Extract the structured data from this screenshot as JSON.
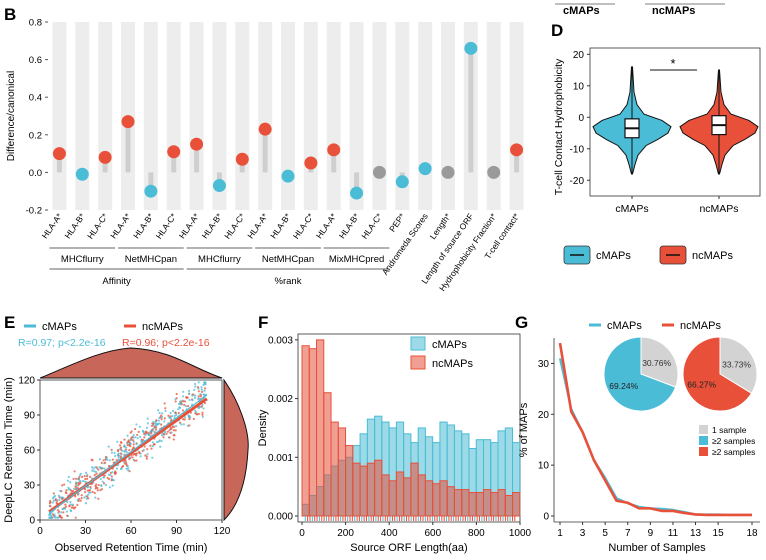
{
  "colors": {
    "cmaps": "#4bbcd6",
    "ncmaps": "#e8503a",
    "neutral": "#9a9a9a",
    "stick": "#cfcfcf",
    "band": "#ededed",
    "pie_grey": "#d3d3d3"
  },
  "top_legend": {
    "left": "cMAPs",
    "right": "ncMAPs"
  },
  "panels": {
    "B": "B",
    "D": "D",
    "E": "E",
    "F": "F",
    "G": "G"
  },
  "chart_data": [
    {
      "panel": "B",
      "type": "scatter",
      "ylabel": "Difference/canonical",
      "ylim": [
        -0.2,
        0.8
      ],
      "yticks": [
        "-0.2",
        "0.0",
        "0.2",
        "0.4",
        "0.6",
        "0.8"
      ],
      "categories": [
        "HLA-A*",
        "HLA-B*",
        "HLA-C*",
        "HLA-A*",
        "HLA-B*",
        "HLA-C*",
        "HLA-A*",
        "HLA-B*",
        "HLA-C*",
        "HLA-A*",
        "HLA-B*",
        "HLA-C*",
        "HLA-A*",
        "HLA-B*",
        "HLA-C*",
        "PEP*",
        "Andromeda Scores",
        "Length*",
        "Length of source ORF",
        "Hydrophobicity Fraction*",
        "T-cell contact*"
      ],
      "values": [
        0.1,
        -0.01,
        0.08,
        0.27,
        -0.1,
        0.11,
        0.15,
        -0.07,
        0.07,
        0.23,
        -0.02,
        0.05,
        0.12,
        -0.11,
        0.0,
        -0.05,
        0.02,
        0.0,
        0.66,
        0.0,
        0.12
      ],
      "point_colors": [
        "ncmaps",
        "cmaps",
        "ncmaps",
        "ncmaps",
        "cmaps",
        "ncmaps",
        "ncmaps",
        "cmaps",
        "ncmaps",
        "ncmaps",
        "cmaps",
        "ncmaps",
        "ncmaps",
        "cmaps",
        "neutral",
        "cmaps",
        "cmaps",
        "neutral",
        "cmaps",
        "neutral",
        "ncmaps"
      ],
      "tools": [
        "MHCflurry",
        "NetMHCpan",
        "MHCflurry",
        "NetMHCpan",
        "MixMHCpred"
      ],
      "groups": [
        "Affinity",
        "%rank"
      ]
    },
    {
      "panel": "D",
      "type": "violin",
      "ylabel": "T-cell Contact Hydrophobicity",
      "ylim": [
        -25,
        22
      ],
      "yticks": [
        "20",
        "10",
        "0",
        "-10",
        "-20"
      ],
      "categories": [
        "cMAPs",
        "ncMAPs"
      ],
      "series": [
        {
          "name": "cMAPs",
          "median": -3.5,
          "q1": -6.5,
          "q3": -0.5,
          "min": -18,
          "max": 16
        },
        {
          "name": "ncMAPs",
          "median": -2.5,
          "q1": -5.5,
          "q3": 0.5,
          "min": -18,
          "max": 15
        }
      ],
      "significance": "*",
      "legend": [
        "cMAPs",
        "ncMAPs"
      ]
    },
    {
      "panel": "E",
      "type": "scatter",
      "xlabel": "Observed Retention Time (min)",
      "ylabel": "DeepLC Retention Time (min)",
      "xlim": [
        0,
        120
      ],
      "ylim": [
        0,
        120
      ],
      "xticks": [
        "0",
        "30",
        "60",
        "90",
        "120"
      ],
      "yticks": [
        "0",
        "30",
        "60",
        "90",
        "120"
      ],
      "legend": [
        "cMAPs",
        "ncMAPs"
      ],
      "stats": [
        "R=0.97; p<2.2e-16",
        "R=0.96; p<2.2e-16"
      ]
    },
    {
      "panel": "F",
      "type": "bar",
      "xlabel": "Source ORF Length(aa)",
      "ylabel": "Density",
      "xlim": [
        0,
        1000
      ],
      "ylim": [
        0,
        0.0031
      ],
      "xticks": [
        "0",
        "200",
        "400",
        "600",
        "800",
        "1000"
      ],
      "yticks": [
        "0.000",
        "0.001",
        "0.002",
        "0.003"
      ],
      "legend": [
        "cMAPs",
        "ncMAPs"
      ],
      "bin_width": 33.3,
      "series": [
        {
          "name": "cMAPs",
          "values": [
            0.0002,
            0.00035,
            0.0005,
            0.0007,
            0.00085,
            0.00095,
            0.001,
            0.0012,
            0.0014,
            0.00165,
            0.0017,
            0.0016,
            0.0015,
            0.0016,
            0.0014,
            0.00125,
            0.0015,
            0.00135,
            0.00125,
            0.0016,
            0.00155,
            0.00145,
            0.0014,
            0.00115,
            0.0013,
            0.0013,
            0.00125,
            0.00145,
            0.0015,
            0.00125
          ]
        },
        {
          "name": "ncMAPs",
          "values": [
            0.0029,
            0.00285,
            0.003,
            0.0021,
            0.0016,
            0.0015,
            0.0012,
            0.0009,
            0.00085,
            0.0009,
            0.00095,
            0.0007,
            0.0006,
            0.00075,
            0.00065,
            0.0009,
            0.0007,
            0.0006,
            0.00055,
            0.0006,
            0.0005,
            0.00045,
            0.00045,
            0.0004,
            0.0004,
            0.00045,
            0.0004,
            0.00045,
            0.00035,
            0.0004
          ]
        }
      ]
    },
    {
      "panel": "G",
      "type": "line",
      "xlabel": "Number of Samples",
      "ylabel": "% of MAPs",
      "xlim": [
        1,
        18
      ],
      "ylim": [
        0,
        35
      ],
      "xticks": [
        "1",
        "3",
        "5",
        "7",
        "9",
        "11",
        "13",
        "15",
        "18"
      ],
      "yticks": [
        "0",
        "10",
        "20",
        "30"
      ],
      "legend": [
        "cMAPs",
        "ncMAPs"
      ],
      "x": [
        1,
        2,
        3,
        4,
        5,
        6,
        7,
        8,
        9,
        10,
        11,
        12,
        13,
        14,
        15,
        16,
        17,
        18
      ],
      "series": [
        {
          "name": "cMAPs",
          "values": [
            31.0,
            21.0,
            16.5,
            11.0,
            7.5,
            3.5,
            2.5,
            1.8,
            1.5,
            1.4,
            1.2,
            0.8,
            0.3,
            0.3,
            0.3,
            0.2,
            0.2,
            0.2
          ]
        },
        {
          "name": "ncMAPs",
          "values": [
            34.0,
            20.5,
            16.5,
            11.0,
            7.0,
            3.0,
            2.6,
            1.5,
            1.5,
            1.0,
            1.0,
            0.6,
            0.3,
            0.2,
            0.2,
            0.2,
            0.2,
            0.2
          ]
        }
      ],
      "pies": [
        {
          "name": "cMAPs",
          "slices": [
            {
              "label": "1 sample",
              "value": 30.76,
              "text": "30.76%",
              "color": "pie_grey"
            },
            {
              "label": "≥2 samples",
              "value": 69.24,
              "text": "69.24%",
              "color": "cmaps"
            }
          ]
        },
        {
          "name": "ncMAPs",
          "slices": [
            {
              "label": "1 sample",
              "value": 33.73,
              "text": "33.73%",
              "color": "pie_grey"
            },
            {
              "label": "≥2 samples",
              "value": 66.27,
              "text": "66.27%",
              "color": "ncmaps"
            }
          ]
        }
      ],
      "pie_legend": [
        "1 sample",
        "≥2 samples",
        "≥2 samples"
      ]
    }
  ]
}
